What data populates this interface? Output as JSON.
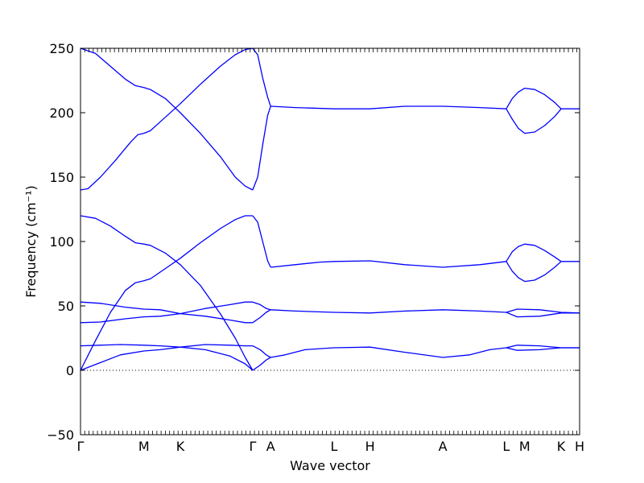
{
  "chart_data": {
    "type": "line",
    "xlabel": "Wave vector",
    "ylabel": "Frequency (cm⁻¹)",
    "ylim": [
      -50,
      250
    ],
    "yticks": [
      -50,
      0,
      50,
      100,
      150,
      200,
      250
    ],
    "xlim": [
      0,
      1
    ],
    "grid": false,
    "zero_line": {
      "y": 0,
      "style": "dotted"
    },
    "line_color": "#0000ff",
    "xticks": [
      {
        "label": "Γ",
        "x": 0.0
      },
      {
        "label": "M",
        "x": 0.127
      },
      {
        "label": "K",
        "x": 0.2
      },
      {
        "label": "Γ",
        "x": 0.345
      },
      {
        "label": "A",
        "x": 0.381
      },
      {
        "label": "L",
        "x": 0.508
      },
      {
        "label": "H",
        "x": 0.58
      },
      {
        "label": "A",
        "x": 0.726
      },
      {
        "label": "L",
        "x": 0.853
      },
      {
        "label": "M",
        "x": 0.89
      },
      {
        "label": "K",
        "x": 0.963
      },
      {
        "label": "H",
        "x": 1.0
      }
    ],
    "series": [
      {
        "points": [
          [
            0,
            250
          ],
          [
            0.03,
            246
          ],
          [
            0.06,
            236
          ],
          [
            0.09,
            226
          ],
          [
            0.11,
            221
          ],
          [
            0.127,
            219.5
          ],
          [
            0.14,
            218
          ],
          [
            0.17,
            211
          ],
          [
            0.2,
            200
          ],
          [
            0.24,
            184
          ],
          [
            0.28,
            166
          ],
          [
            0.31,
            150
          ],
          [
            0.33,
            143
          ],
          [
            0.345,
            140
          ]
        ]
      },
      {
        "points": [
          [
            0,
            140
          ],
          [
            0.015,
            141
          ],
          [
            0.04,
            150
          ],
          [
            0.07,
            163
          ],
          [
            0.1,
            177
          ],
          [
            0.115,
            183
          ],
          [
            0.127,
            184
          ],
          [
            0.14,
            186
          ],
          [
            0.16,
            193
          ],
          [
            0.2,
            207
          ],
          [
            0.24,
            222
          ],
          [
            0.28,
            236
          ],
          [
            0.31,
            245
          ],
          [
            0.33,
            249
          ],
          [
            0.345,
            250
          ]
        ]
      },
      {
        "points": [
          [
            0.345,
            140
          ],
          [
            0.355,
            150
          ],
          [
            0.365,
            175
          ],
          [
            0.375,
            198
          ],
          [
            0.381,
            205
          ]
        ]
      },
      {
        "points": [
          [
            0.345,
            250
          ],
          [
            0.355,
            245
          ],
          [
            0.365,
            227
          ],
          [
            0.375,
            212
          ],
          [
            0.381,
            205
          ]
        ]
      },
      {
        "points": [
          [
            0.381,
            205
          ],
          [
            0.43,
            204
          ],
          [
            0.508,
            203
          ],
          [
            0.58,
            203
          ],
          [
            0.65,
            205
          ],
          [
            0.726,
            205
          ],
          [
            0.8,
            204
          ],
          [
            0.853,
            203
          ]
        ]
      },
      {
        "points": [
          [
            0.853,
            203
          ],
          [
            0.865,
            211
          ],
          [
            0.877,
            216
          ],
          [
            0.89,
            219
          ],
          [
            0.91,
            218
          ],
          [
            0.93,
            214
          ],
          [
            0.95,
            208
          ],
          [
            0.963,
            203
          ],
          [
            1.0,
            203
          ]
        ]
      },
      {
        "points": [
          [
            0.853,
            203
          ],
          [
            0.865,
            195
          ],
          [
            0.877,
            188
          ],
          [
            0.89,
            184
          ],
          [
            0.91,
            185
          ],
          [
            0.93,
            190
          ],
          [
            0.95,
            197
          ],
          [
            0.963,
            203
          ]
        ]
      },
      {
        "points": [
          [
            0,
            120
          ],
          [
            0.03,
            118
          ],
          [
            0.06,
            112
          ],
          [
            0.09,
            104
          ],
          [
            0.11,
            99
          ],
          [
            0.127,
            98
          ],
          [
            0.14,
            97
          ],
          [
            0.17,
            91
          ],
          [
            0.2,
            82
          ],
          [
            0.24,
            66
          ],
          [
            0.28,
            44
          ],
          [
            0.31,
            25
          ],
          [
            0.33,
            10
          ],
          [
            0.345,
            0
          ]
        ]
      },
      {
        "points": [
          [
            0,
            0
          ],
          [
            0.03,
            23
          ],
          [
            0.06,
            45
          ],
          [
            0.09,
            62
          ],
          [
            0.11,
            68
          ],
          [
            0.127,
            69.5
          ],
          [
            0.14,
            71
          ],
          [
            0.17,
            79
          ],
          [
            0.2,
            87
          ],
          [
            0.24,
            99
          ],
          [
            0.28,
            110
          ],
          [
            0.31,
            117
          ],
          [
            0.33,
            120
          ],
          [
            0.345,
            120
          ]
        ]
      },
      {
        "points": [
          [
            0.345,
            120
          ],
          [
            0.355,
            115
          ],
          [
            0.365,
            100
          ],
          [
            0.375,
            85
          ],
          [
            0.381,
            80
          ]
        ]
      },
      {
        "points": [
          [
            0.381,
            80
          ],
          [
            0.43,
            82
          ],
          [
            0.48,
            84
          ],
          [
            0.508,
            84.5
          ],
          [
            0.58,
            85
          ],
          [
            0.65,
            82
          ],
          [
            0.726,
            80
          ],
          [
            0.8,
            82
          ],
          [
            0.853,
            84.5
          ]
        ]
      },
      {
        "points": [
          [
            0.853,
            84.5
          ],
          [
            0.865,
            92
          ],
          [
            0.877,
            96
          ],
          [
            0.89,
            98
          ],
          [
            0.91,
            97
          ],
          [
            0.93,
            93
          ],
          [
            0.95,
            88
          ],
          [
            0.963,
            84.5
          ],
          [
            1.0,
            84.5
          ]
        ]
      },
      {
        "points": [
          [
            0.853,
            84.5
          ],
          [
            0.865,
            77
          ],
          [
            0.877,
            72
          ],
          [
            0.89,
            69
          ],
          [
            0.91,
            70
          ],
          [
            0.93,
            74
          ],
          [
            0.95,
            80
          ],
          [
            0.963,
            84.5
          ]
        ]
      },
      {
        "points": [
          [
            0,
            53
          ],
          [
            0.04,
            52
          ],
          [
            0.09,
            49
          ],
          [
            0.127,
            47.5
          ],
          [
            0.16,
            47
          ],
          [
            0.2,
            44
          ],
          [
            0.25,
            42
          ],
          [
            0.3,
            39
          ],
          [
            0.33,
            37
          ],
          [
            0.345,
            37
          ]
        ]
      },
      {
        "points": [
          [
            0,
            37
          ],
          [
            0.04,
            37.5
          ],
          [
            0.09,
            40
          ],
          [
            0.127,
            41.5
          ],
          [
            0.16,
            42
          ],
          [
            0.2,
            44
          ],
          [
            0.25,
            48
          ],
          [
            0.3,
            51
          ],
          [
            0.33,
            53
          ],
          [
            0.345,
            53
          ]
        ]
      },
      {
        "points": [
          [
            0.345,
            53
          ],
          [
            0.36,
            51
          ],
          [
            0.372,
            48
          ],
          [
            0.381,
            47
          ]
        ]
      },
      {
        "points": [
          [
            0.345,
            37
          ],
          [
            0.36,
            41
          ],
          [
            0.372,
            45
          ],
          [
            0.381,
            47
          ]
        ]
      },
      {
        "points": [
          [
            0.381,
            47
          ],
          [
            0.43,
            46
          ],
          [
            0.508,
            45
          ],
          [
            0.58,
            44.5
          ],
          [
            0.65,
            46
          ],
          [
            0.726,
            47
          ],
          [
            0.8,
            46
          ],
          [
            0.853,
            45
          ]
        ]
      },
      {
        "points": [
          [
            0.853,
            45
          ],
          [
            0.875,
            47.5
          ],
          [
            0.92,
            47
          ],
          [
            0.963,
            45
          ],
          [
            1.0,
            44.5
          ]
        ]
      },
      {
        "points": [
          [
            0.853,
            45
          ],
          [
            0.875,
            41.5
          ],
          [
            0.92,
            42
          ],
          [
            0.963,
            44.5
          ],
          [
            1.0,
            44.5
          ]
        ]
      },
      {
        "points": [
          [
            0,
            19
          ],
          [
            0.04,
            19.5
          ],
          [
            0.08,
            20
          ],
          [
            0.127,
            19.5
          ],
          [
            0.16,
            19
          ],
          [
            0.2,
            18
          ],
          [
            0.25,
            16
          ],
          [
            0.3,
            11
          ],
          [
            0.33,
            5
          ],
          [
            0.345,
            0
          ]
        ]
      },
      {
        "points": [
          [
            0,
            0
          ],
          [
            0.04,
            6
          ],
          [
            0.08,
            12
          ],
          [
            0.127,
            15
          ],
          [
            0.16,
            16
          ],
          [
            0.2,
            18
          ],
          [
            0.25,
            20
          ],
          [
            0.3,
            19.5
          ],
          [
            0.33,
            19
          ],
          [
            0.345,
            19
          ]
        ]
      },
      {
        "points": [
          [
            0.345,
            19
          ],
          [
            0.36,
            16
          ],
          [
            0.372,
            12
          ],
          [
            0.381,
            10
          ]
        ]
      },
      {
        "points": [
          [
            0.345,
            0
          ],
          [
            0.36,
            4
          ],
          [
            0.372,
            8
          ],
          [
            0.381,
            10
          ]
        ]
      },
      {
        "points": [
          [
            0.381,
            10
          ],
          [
            0.41,
            12
          ],
          [
            0.45,
            16
          ],
          [
            0.508,
            17.5
          ],
          [
            0.58,
            18
          ],
          [
            0.65,
            14
          ],
          [
            0.726,
            10
          ],
          [
            0.78,
            12
          ],
          [
            0.82,
            16
          ],
          [
            0.853,
            17.5
          ]
        ]
      },
      {
        "points": [
          [
            0.853,
            17.5
          ],
          [
            0.875,
            19.5
          ],
          [
            0.92,
            19
          ],
          [
            0.963,
            17.5
          ],
          [
            1.0,
            17.5
          ]
        ]
      },
      {
        "points": [
          [
            0.853,
            17.5
          ],
          [
            0.875,
            15.5
          ],
          [
            0.92,
            16
          ],
          [
            0.963,
            17.5
          ],
          [
            1.0,
            17.5
          ]
        ]
      }
    ]
  }
}
